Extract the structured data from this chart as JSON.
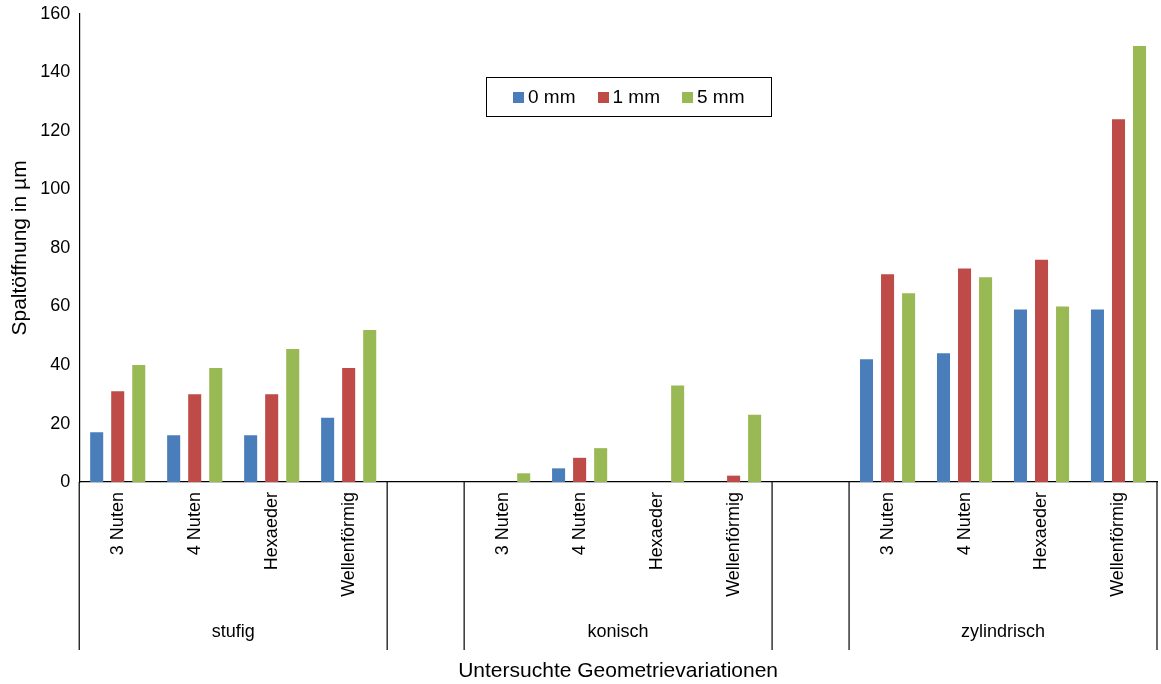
{
  "chart_data": {
    "type": "bar",
    "categories": [
      "3 Nuten",
      "4 Nuten",
      "Hexaeder",
      "Wellenförmig",
      null,
      "3 Nuten",
      "4 Nuten",
      "Hexaeder",
      "Wellenförmig",
      null,
      "3 Nuten",
      "4 Nuten",
      "Hexaeder",
      "Wellenförmig"
    ],
    "series": [
      {
        "name": "0 mm",
        "color": "#4a7ebb",
        "values": [
          17,
          16,
          16,
          22,
          null,
          null,
          4.7,
          null,
          null,
          null,
          42,
          44,
          59,
          59
        ]
      },
      {
        "name": "1 mm",
        "color": "#be4b48",
        "values": [
          31,
          30,
          30,
          39,
          null,
          null,
          8.3,
          null,
          2.2,
          null,
          71,
          73,
          76,
          124
        ]
      },
      {
        "name": "5 mm",
        "color": "#98b954",
        "values": [
          40,
          39,
          45.5,
          52,
          null,
          3,
          11.6,
          33,
          23,
          null,
          64.5,
          70,
          60,
          149
        ]
      }
    ],
    "annotations": [
      "stufig",
      "konisch",
      "zylindrisch"
    ],
    "xlabel": "Untersuchte Geometrievariationen",
    "ylabel": "Spaltöffnung in µm",
    "ylim": [
      0,
      160
    ],
    "yticks": [
      0,
      20,
      40,
      60,
      80,
      100,
      120,
      140,
      160
    ],
    "grid": false,
    "legend": "top"
  }
}
